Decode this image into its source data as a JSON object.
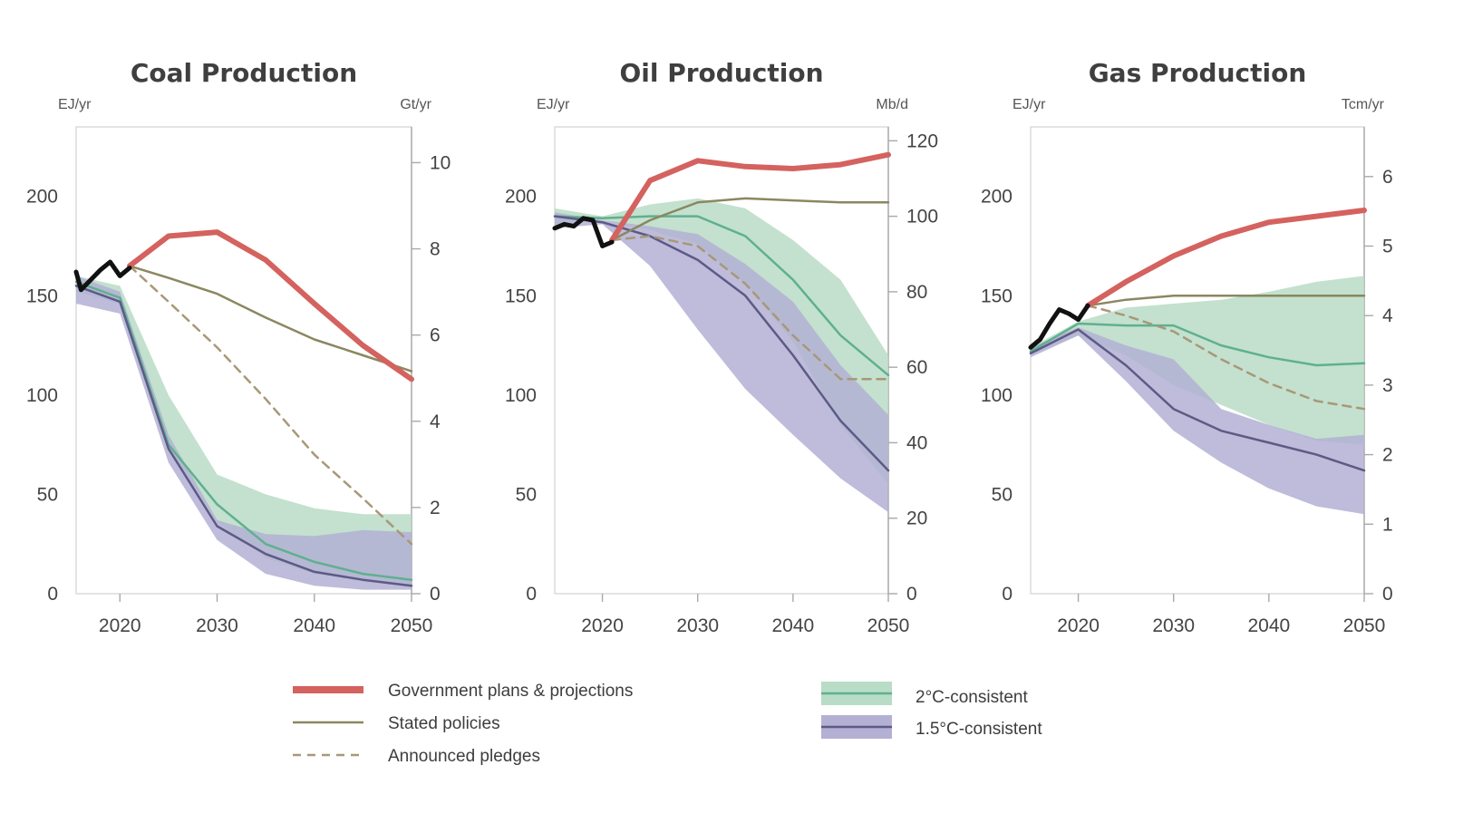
{
  "colors": {
    "government": "#d4625f",
    "stated": "#8b8760",
    "pledges": "#a89878",
    "historical": "#111111",
    "band2": "#b9dcc6",
    "line2": "#5fb08f",
    "band15": "#b3b0d4",
    "line15": "#5d5a86"
  },
  "legend": {
    "government": "Government plans & projections",
    "stated": "Stated policies",
    "pledges": "Announced pledges",
    "c2": "2°C-consistent",
    "c15": "1.5°C-consistent"
  },
  "chart_data": [
    {
      "type": "line",
      "title": "Coal Production",
      "left_unit": "EJ/yr",
      "right_unit": "Gt/yr",
      "xlim": [
        2015.5,
        2050
      ],
      "ylim": [
        0,
        235
      ],
      "left_ticks": [
        0,
        50,
        100,
        150,
        200
      ],
      "right_ticks": [
        0,
        2,
        4,
        6,
        8,
        10
      ],
      "right_factor": 21.7,
      "x_ticks": [
        2020,
        2030,
        2040,
        2050
      ],
      "historical": {
        "x": [
          2015,
          2016,
          2017,
          2018,
          2019,
          2020,
          2021
        ],
        "y": [
          162,
          153,
          158,
          163,
          167,
          160,
          164
        ]
      },
      "government": {
        "x": [
          2021,
          2025,
          2030,
          2035,
          2040,
          2045,
          2050
        ],
        "y": [
          165,
          180,
          182,
          168,
          146,
          125,
          108
        ]
      },
      "stated": {
        "x": [
          2021,
          2025,
          2030,
          2035,
          2040,
          2045,
          2050
        ],
        "y": [
          165,
          159,
          151,
          139,
          128,
          120,
          112
        ]
      },
      "pledges": {
        "x": [
          2021,
          2025,
          2030,
          2035,
          2040,
          2045,
          2050
        ],
        "y": [
          165,
          147,
          124,
          98,
          70,
          48,
          25
        ]
      },
      "c2_band": {
        "x": [
          2015,
          2020,
          2025,
          2030,
          2035,
          2040,
          2045,
          2050
        ],
        "upper": [
          160,
          155,
          100,
          60,
          50,
          43,
          40,
          40
        ],
        "lower": [
          152,
          146,
          73,
          36,
          18,
          10,
          7,
          4
        ]
      },
      "c2_line": {
        "x": [
          2015,
          2020,
          2025,
          2030,
          2035,
          2040,
          2045,
          2050
        ],
        "y": [
          157,
          149,
          75,
          45,
          25,
          16,
          10,
          7
        ]
      },
      "c15_band": {
        "x": [
          2015,
          2020,
          2025,
          2030,
          2035,
          2040,
          2045,
          2050
        ],
        "upper": [
          160,
          152,
          80,
          37,
          30,
          29,
          32,
          31
        ],
        "lower": [
          146,
          141,
          66,
          27,
          10,
          4,
          2,
          2
        ]
      },
      "c15_line": {
        "x": [
          2015,
          2020,
          2025,
          2030,
          2035,
          2040,
          2045,
          2050
        ],
        "y": [
          155,
          147,
          73,
          34,
          20,
          11,
          7,
          4
        ]
      }
    },
    {
      "type": "line",
      "title": "Oil Production",
      "left_unit": "EJ/yr",
      "right_unit": "Mb/d",
      "xlim": [
        2015,
        2050
      ],
      "ylim": [
        0,
        235
      ],
      "left_ticks": [
        0,
        50,
        100,
        150,
        200
      ],
      "right_ticks": [
        0,
        20,
        40,
        60,
        80,
        100,
        120
      ],
      "right_factor": 1.9,
      "x_ticks": [
        2020,
        2030,
        2040,
        2050
      ],
      "historical": {
        "x": [
          2015,
          2016,
          2017,
          2018,
          2019,
          2020,
          2021
        ],
        "y": [
          184,
          186,
          185,
          189,
          188,
          175,
          177
        ]
      },
      "government": {
        "x": [
          2021,
          2025,
          2030,
          2035,
          2040,
          2045,
          2050
        ],
        "y": [
          178,
          208,
          218,
          215,
          214,
          216,
          221
        ]
      },
      "stated": {
        "x": [
          2021,
          2025,
          2030,
          2035,
          2040,
          2045,
          2050
        ],
        "y": [
          178,
          188,
          197,
          199,
          198,
          197,
          197
        ]
      },
      "pledges": {
        "x": [
          2021,
          2025,
          2030,
          2035,
          2040,
          2045,
          2050
        ],
        "y": [
          178,
          180,
          175,
          156,
          130,
          108,
          108
        ]
      },
      "c2_band": {
        "x": [
          2015,
          2020,
          2025,
          2030,
          2035,
          2040,
          2045,
          2050
        ],
        "upper": [
          194,
          190,
          196,
          199,
          194,
          178,
          158,
          120
        ],
        "lower": [
          186,
          188,
          183,
          176,
          156,
          127,
          85,
          55
        ]
      },
      "c2_line": {
        "x": [
          2015,
          2020,
          2025,
          2030,
          2035,
          2040,
          2045,
          2050
        ],
        "y": [
          190,
          189,
          190,
          190,
          180,
          158,
          130,
          110
        ]
      },
      "c15_band": {
        "x": [
          2015,
          2020,
          2025,
          2030,
          2035,
          2040,
          2045,
          2050
        ],
        "upper": [
          192,
          188,
          185,
          181,
          166,
          147,
          115,
          90
        ],
        "lower": [
          184,
          186,
          165,
          133,
          103,
          80,
          58,
          41
        ]
      },
      "c15_line": {
        "x": [
          2015,
          2020,
          2025,
          2030,
          2035,
          2040,
          2045,
          2050
        ],
        "y": [
          190,
          187,
          180,
          168,
          150,
          120,
          87,
          62
        ]
      }
    },
    {
      "type": "line",
      "title": "Gas Production",
      "left_unit": "EJ/yr",
      "right_unit": "Tcm/yr",
      "xlim": [
        2015,
        2050
      ],
      "ylim": [
        0,
        235
      ],
      "left_ticks": [
        0,
        50,
        100,
        150,
        200
      ],
      "right_ticks": [
        0,
        1,
        2,
        3,
        4,
        5,
        6
      ],
      "right_factor": 35,
      "x_ticks": [
        2020,
        2030,
        2040,
        2050
      ],
      "historical": {
        "x": [
          2015,
          2016,
          2017,
          2018,
          2019,
          2020,
          2021
        ],
        "y": [
          124,
          128,
          136,
          143,
          141,
          138,
          145
        ]
      },
      "government": {
        "x": [
          2021,
          2025,
          2030,
          2035,
          2040,
          2045,
          2050
        ],
        "y": [
          145,
          157,
          170,
          180,
          187,
          190,
          193
        ]
      },
      "stated": {
        "x": [
          2021,
          2025,
          2030,
          2035,
          2040,
          2045,
          2050
        ],
        "y": [
          145,
          148,
          150,
          150,
          150,
          150,
          150
        ]
      },
      "pledges": {
        "x": [
          2021,
          2025,
          2030,
          2035,
          2040,
          2045,
          2050
        ],
        "y": [
          145,
          140,
          132,
          118,
          106,
          97,
          93
        ]
      },
      "c2_band": {
        "x": [
          2015,
          2020,
          2025,
          2030,
          2035,
          2040,
          2045,
          2050
        ],
        "upper": [
          124,
          137,
          144,
          146,
          148,
          152,
          157,
          160
        ],
        "lower": [
          120,
          130,
          120,
          105,
          95,
          85,
          77,
          75
        ]
      },
      "c2_line": {
        "x": [
          2015,
          2020,
          2025,
          2030,
          2035,
          2040,
          2045,
          2050
        ],
        "y": [
          122,
          136,
          135,
          135,
          125,
          119,
          115,
          116
        ]
      },
      "c15_band": {
        "x": [
          2015,
          2020,
          2025,
          2030,
          2035,
          2040,
          2045,
          2050
        ],
        "upper": [
          124,
          134,
          125,
          118,
          93,
          85,
          78,
          80
        ],
        "lower": [
          119,
          130,
          107,
          82,
          66,
          53,
          44,
          40
        ]
      },
      "c15_line": {
        "x": [
          2015,
          2020,
          2025,
          2030,
          2035,
          2040,
          2045,
          2050
        ],
        "y": [
          121,
          133,
          115,
          93,
          82,
          76,
          70,
          62
        ]
      }
    }
  ]
}
